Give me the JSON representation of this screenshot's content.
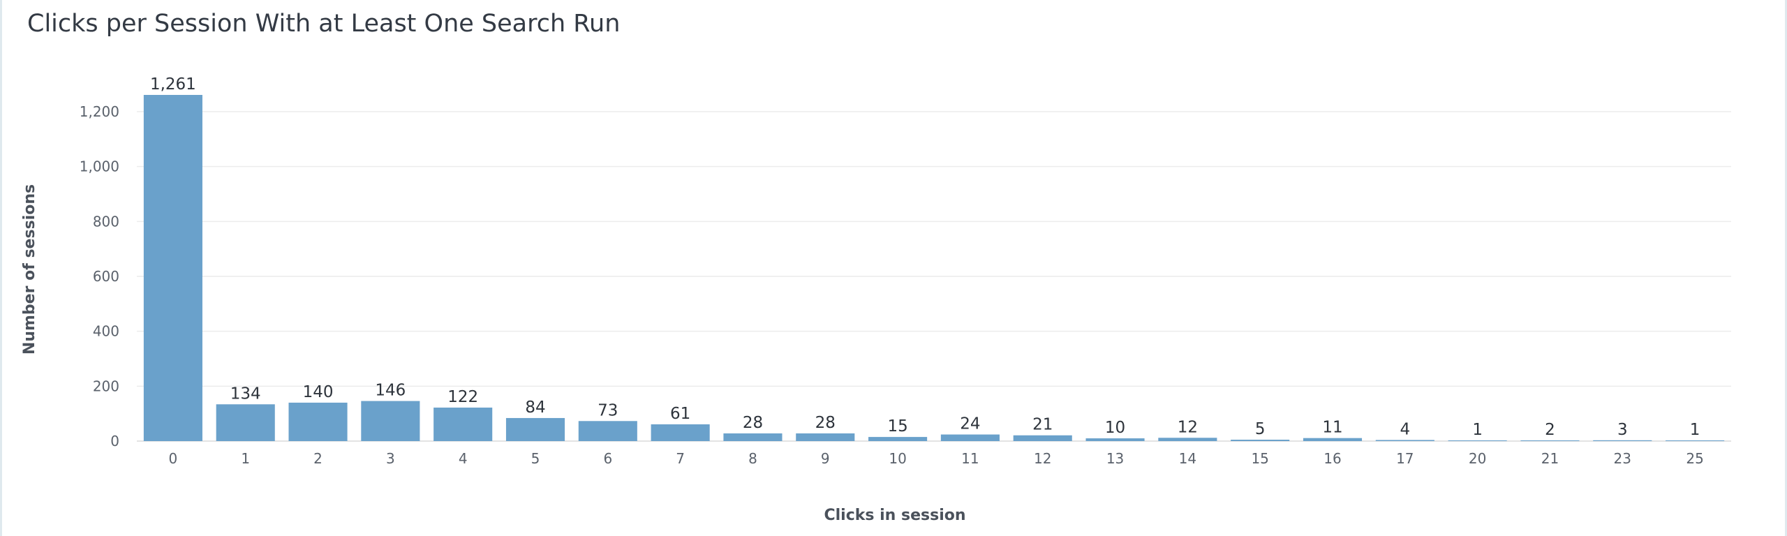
{
  "chart_data": {
    "type": "bar",
    "title": "Clicks per Session With at Least One Search Run",
    "xlabel": "Clicks in session",
    "ylabel": "Number of sessions",
    "categories": [
      "0",
      "1",
      "2",
      "3",
      "4",
      "5",
      "6",
      "7",
      "8",
      "9",
      "10",
      "11",
      "12",
      "13",
      "14",
      "15",
      "16",
      "17",
      "20",
      "21",
      "23",
      "25"
    ],
    "values": [
      1261,
      134,
      140,
      146,
      122,
      84,
      73,
      61,
      28,
      28,
      15,
      24,
      21,
      10,
      12,
      5,
      11,
      4,
      1,
      2,
      3,
      1
    ],
    "data_labels": [
      "1,261",
      "134",
      "140",
      "146",
      "122",
      "84",
      "73",
      "61",
      "28",
      "28",
      "15",
      "24",
      "21",
      "10",
      "12",
      "5",
      "11",
      "4",
      "1",
      "2",
      "3",
      "1"
    ],
    "y_ticks": [
      0,
      200,
      400,
      600,
      800,
      1000,
      1200
    ],
    "y_tick_labels": [
      "0",
      "200",
      "400",
      "600",
      "800",
      "1,000",
      "1,200"
    ],
    "ylim": [
      0,
      1261
    ],
    "grid": true,
    "legend": "none",
    "bar_color": "#6aa1cb",
    "grid_color": "#ececec"
  }
}
